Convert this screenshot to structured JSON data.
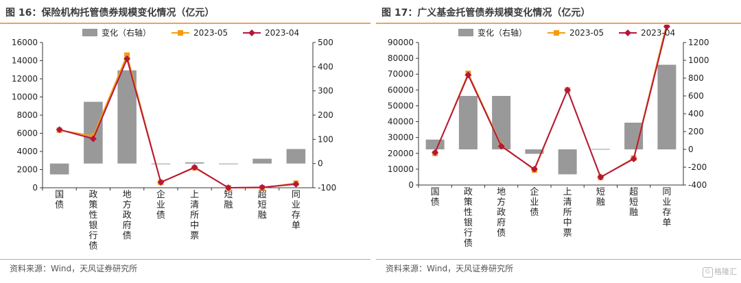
{
  "watermark": {
    "badge": "G",
    "text": "格隆汇"
  },
  "panels": [
    {
      "title": "图 16：保险机构托管债券规模变化情况（亿元）",
      "source": "资料来源：Wind，天风证券研究所",
      "colors": {
        "bar": "#999999",
        "line1": "#f39c12",
        "line2": "#b5163d",
        "accent": "#e8a35c"
      },
      "chart_data": {
        "type": "bar+line",
        "categories": [
          "国债",
          "政策性银行债",
          "地方政府债",
          "企业债",
          "上清所中票",
          "短融",
          "超短融",
          "同业存单"
        ],
        "legend": [
          "变化（右轴）",
          "2023-05",
          "2023-04"
        ],
        "legend_position": "top",
        "left_axis": {
          "min": 0,
          "max": 16000,
          "ticks": [
            0,
            2000,
            4000,
            6000,
            8000,
            10000,
            12000,
            14000,
            16000
          ]
        },
        "right_axis": {
          "min": -100,
          "max": 500,
          "ticks": [
            -100,
            0,
            100,
            200,
            300,
            400,
            500
          ]
        },
        "series": [
          {
            "name": "变化（右轴）",
            "type": "bar",
            "axis": "right",
            "values": [
              -45,
              255,
              385,
              0,
              5,
              -2,
              20,
              60
            ]
          },
          {
            "name": "2023-05",
            "type": "line",
            "axis": "left",
            "values": [
              6350,
              5700,
              14600,
              600,
              2200,
              0,
              0,
              500
            ]
          },
          {
            "name": "2023-04",
            "type": "line",
            "axis": "left",
            "values": [
              6400,
              5400,
              14200,
              600,
              2250,
              0,
              50,
              400
            ]
          }
        ]
      }
    },
    {
      "title": "图 17：广义基金托管债券规模变化情况（亿元）",
      "source": "资料来源：Wind，天风证券研究所",
      "colors": {
        "bar": "#999999",
        "line1": "#f39c12",
        "line2": "#b5163d",
        "accent": "#e8a35c"
      },
      "chart_data": {
        "type": "bar+line",
        "categories": [
          "国债",
          "政策性银行债",
          "地方政府债",
          "企业债",
          "上清所中票",
          "短融",
          "超短融",
          "同业存单"
        ],
        "legend": [
          "变化（右轴）",
          "2023-05",
          "2023-04"
        ],
        "legend_position": "top",
        "left_axis": {
          "min": 0,
          "max": 90000,
          "ticks": [
            0,
            10000,
            20000,
            30000,
            40000,
            50000,
            60000,
            70000,
            80000,
            90000
          ]
        },
        "right_axis": {
          "min": -400,
          "max": 1200,
          "ticks": [
            -400,
            -200,
            0,
            200,
            400,
            600,
            800,
            1000,
            1200
          ]
        },
        "series": [
          {
            "name": "变化（右轴）",
            "type": "bar",
            "axis": "right",
            "values": [
              110,
              600,
              600,
              -50,
              -280,
              5,
              300,
              950
            ]
          },
          {
            "name": "2023-05",
            "type": "line",
            "axis": "left",
            "values": [
              20000,
              70500,
              25000,
              9500,
              60000,
              4800,
              17000,
              102000
            ]
          },
          {
            "name": "2023-04",
            "type": "line",
            "axis": "left",
            "values": [
              20500,
              69500,
              24500,
              10000,
              60000,
              5000,
              16500,
              100000
            ]
          }
        ]
      }
    }
  ]
}
